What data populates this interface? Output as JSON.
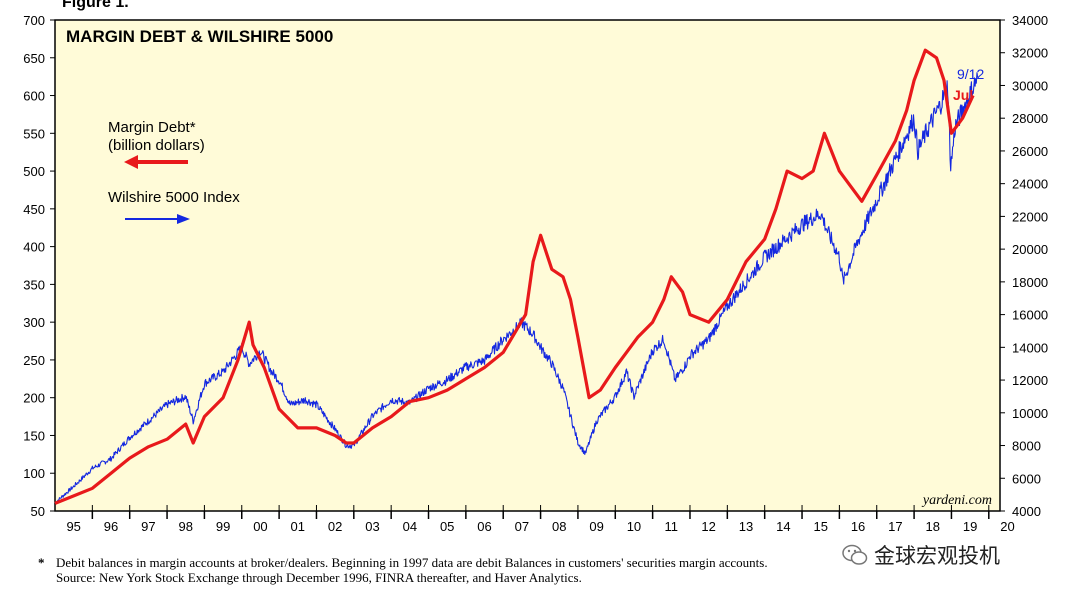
{
  "figure_label": "Figure 1.",
  "chart_data": {
    "type": "line",
    "title": "MARGIN DEBT & WILSHIRE 5000",
    "source_brand": "yardeni.com",
    "x_ticks": [
      "95",
      "96",
      "97",
      "98",
      "99",
      "00",
      "01",
      "02",
      "03",
      "04",
      "05",
      "06",
      "07",
      "08",
      "09",
      "10",
      "11",
      "12",
      "13",
      "14",
      "15",
      "16",
      "17",
      "18",
      "19",
      "20"
    ],
    "xlim": [
      1995,
      2020.3
    ],
    "ylim_left": [
      50,
      700
    ],
    "yticks_left": [
      50,
      100,
      150,
      200,
      250,
      300,
      350,
      400,
      450,
      500,
      550,
      600,
      650,
      700
    ],
    "ylim_right": [
      4000,
      34000
    ],
    "yticks_right": [
      4000,
      6000,
      8000,
      10000,
      12000,
      14000,
      16000,
      18000,
      20000,
      22000,
      24000,
      26000,
      28000,
      30000,
      32000,
      34000
    ],
    "legend": {
      "margin_line1": "Margin Debt*",
      "margin_line2": "(billion dollars)",
      "wilshire": "Wilshire 5000 Index"
    },
    "end_labels": {
      "wilshire": "9/12",
      "margin": "Jul"
    },
    "colors": {
      "margin": "#e8191b",
      "wilshire": "#1428e0",
      "plot_bg": "#fffbd8"
    },
    "series": [
      {
        "name": "Margin Debt",
        "axis": "left",
        "x": [
          1995.0,
          1995.5,
          1996.0,
          1996.5,
          1997.0,
          1997.5,
          1998.0,
          1998.5,
          1998.7,
          1999.0,
          1999.5,
          1999.9,
          2000.2,
          2000.3,
          2000.6,
          2001.0,
          2001.5,
          2002.0,
          2002.5,
          2002.8,
          2003.0,
          2003.5,
          2004.0,
          2004.5,
          2005.0,
          2005.5,
          2006.0,
          2006.5,
          2007.0,
          2007.3,
          2007.6,
          2007.8,
          2008.0,
          2008.3,
          2008.6,
          2008.8,
          2009.0,
          2009.3,
          2009.6,
          2010.0,
          2010.3,
          2010.6,
          2011.0,
          2011.3,
          2011.5,
          2011.8,
          2012.0,
          2012.5,
          2013.0,
          2013.5,
          2014.0,
          2014.3,
          2014.6,
          2015.0,
          2015.3,
          2015.6,
          2016.0,
          2016.3,
          2016.6,
          2017.0,
          2017.5,
          2017.8,
          2018.0,
          2018.3,
          2018.6,
          2018.8,
          2019.0,
          2019.3,
          2019.58
        ],
        "values": [
          60,
          70,
          80,
          100,
          120,
          135,
          145,
          165,
          140,
          175,
          200,
          250,
          300,
          270,
          240,
          185,
          160,
          160,
          150,
          140,
          140,
          160,
          175,
          195,
          200,
          210,
          225,
          240,
          260,
          285,
          310,
          380,
          415,
          370,
          360,
          330,
          280,
          200,
          210,
          240,
          260,
          280,
          300,
          330,
          360,
          340,
          310,
          300,
          330,
          380,
          410,
          450,
          500,
          490,
          500,
          550,
          500,
          480,
          460,
          495,
          540,
          580,
          620,
          660,
          650,
          620,
          550,
          570,
          600
        ]
      },
      {
        "name": "Wilshire 5000 Index",
        "axis": "right",
        "x": [
          1995.0,
          1995.5,
          1996.0,
          1996.5,
          1997.0,
          1997.5,
          1998.0,
          1998.5,
          1998.7,
          1999.0,
          1999.5,
          2000.0,
          2000.2,
          2000.5,
          2000.8,
          2001.0,
          2001.3,
          2001.7,
          2002.0,
          2002.5,
          2002.8,
          2003.0,
          2003.5,
          2004.0,
          2004.5,
          2005.0,
          2005.5,
          2006.0,
          2006.5,
          2007.0,
          2007.5,
          2007.8,
          2008.0,
          2008.3,
          2008.6,
          2008.9,
          2009.0,
          2009.2,
          2009.5,
          2010.0,
          2010.3,
          2010.5,
          2011.0,
          2011.3,
          2011.6,
          2011.9,
          2012.0,
          2012.5,
          2013.0,
          2013.5,
          2014.0,
          2014.5,
          2015.0,
          2015.5,
          2015.7,
          2016.0,
          2016.1,
          2016.5,
          2017.0,
          2017.5,
          2018.0,
          2018.1,
          2018.4,
          2018.7,
          2018.9,
          2018.98,
          2019.1,
          2019.4,
          2019.7
        ],
        "values": [
          4500,
          5500,
          6600,
          7200,
          8500,
          9500,
          10500,
          11000,
          9500,
          11800,
          12500,
          14000,
          13000,
          13800,
          12500,
          12000,
          10500,
          10800,
          10500,
          9000,
          8000,
          8000,
          9800,
          10800,
          10600,
          11500,
          12000,
          12800,
          13200,
          14500,
          15500,
          14800,
          14000,
          13000,
          11500,
          9000,
          8200,
          7500,
          9500,
          11000,
          12500,
          11000,
          13800,
          14500,
          12000,
          13000,
          13500,
          14500,
          16500,
          18000,
          19500,
          20500,
          21500,
          22200,
          21000,
          19500,
          18000,
          20500,
          23000,
          25500,
          28000,
          26000,
          27500,
          28800,
          30000,
          25000,
          27500,
          29000,
          30500
        ]
      }
    ]
  },
  "footnote": {
    "line1": "Debit balances in margin accounts at broker/dealers. Beginning in 1997 data are debit Balances in customers' securities margin accounts.",
    "line2": "Source: New York Stock Exchange through December 1996, FINRA thereafter, and Haver Analytics."
  },
  "watermark_text": "金球宏观投机"
}
